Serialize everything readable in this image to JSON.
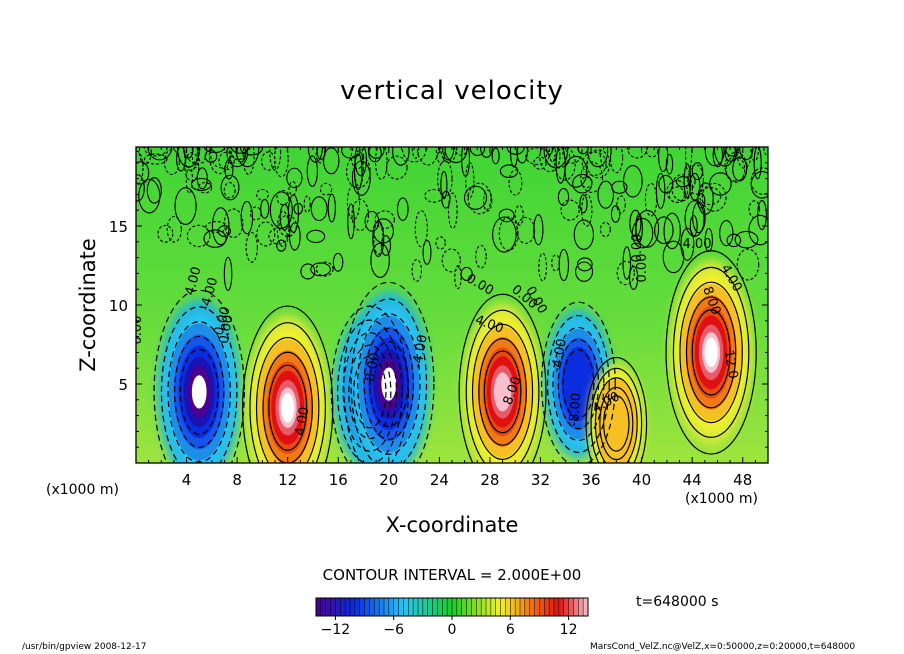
{
  "chart_data": {
    "type": "heatmap",
    "title": "vertical velocity",
    "xlabel": "X-coordinate",
    "ylabel": "Z-coordinate",
    "x_unit_left": "(x1000 m)",
    "x_unit_right": "(x1000 m)",
    "xlim": [
      0,
      50
    ],
    "ylim": [
      0,
      20
    ],
    "x_ticks": [
      "4",
      "8",
      "12",
      "16",
      "20",
      "24",
      "28",
      "32",
      "36",
      "40",
      "44",
      "48"
    ],
    "y_ticks": [
      "5",
      "10",
      "15"
    ],
    "contour_interval": "CONTOUR INTERVAL = 2.000E+00",
    "colorbar": {
      "range": [
        -14,
        14
      ],
      "ticks": [
        "-12",
        "-6",
        "0",
        "6",
        "12"
      ]
    },
    "contour_labels": [
      "0.00",
      "4.00",
      "0.00",
      "-4.00",
      "0.00",
      "4.00",
      "-8.00",
      "-4.00",
      "0.00",
      "4.00",
      "8.00",
      "0.00",
      "0.00",
      "-4.00",
      "-8.00",
      "0.00",
      "4.00",
      "8.00",
      "12.0",
      "4.00",
      "0.00",
      "4.00"
    ],
    "features": [
      {
        "x": 5,
        "z": 4.5,
        "value": -14
      },
      {
        "x": 12,
        "z": 3.5,
        "value": 14
      },
      {
        "x": 18.5,
        "z": 4.5,
        "value": -10
      },
      {
        "x": 20,
        "z": 5,
        "value": -14
      },
      {
        "x": 29,
        "z": 4.5,
        "value": 13
      },
      {
        "x": 35,
        "z": 5,
        "value": -9
      },
      {
        "x": 38,
        "z": 2.5,
        "value": 5
      },
      {
        "x": 45.5,
        "z": 7,
        "value": 14
      }
    ],
    "time": "t=648000 s",
    "colors": {
      "min": "#4a0090",
      "blue": "#0a2de0",
      "cyan": "#29c3f5",
      "green": "#1bcc28",
      "yellow": "#f2f02a",
      "orange": "#f07a14",
      "red": "#e01010",
      "max": "#f7c0cc"
    }
  },
  "footer": {
    "left": "/usr/bin/gpview  2008-12-17",
    "right": "MarsCond_VelZ.nc@VelZ,x=0:50000,z=0:20000,t=648000"
  }
}
